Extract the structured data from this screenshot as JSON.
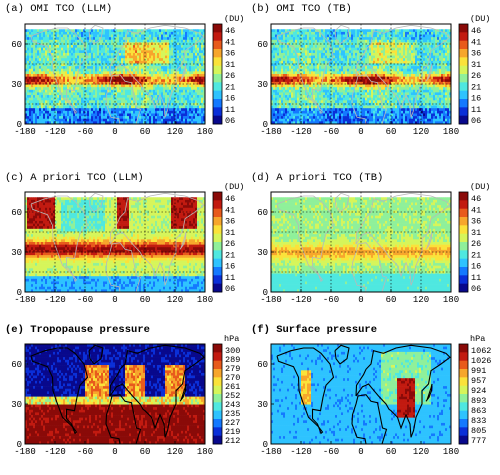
{
  "chart_data": [
    {
      "type": "heatmap",
      "title": "(a) OMI TCO (LLM)",
      "unit": "(DU)",
      "x": [
        -180,
        -120,
        -60,
        0,
        60,
        120,
        180
      ],
      "y": [
        0,
        30,
        60
      ],
      "xlim": [
        -180,
        180
      ],
      "ylim": [
        0,
        75
      ],
      "colorbar_ticks": [
        "46",
        "41",
        "36",
        "31",
        "26",
        "21",
        "16",
        "11",
        "06"
      ],
      "grid": true
    },
    {
      "type": "heatmap",
      "title": "(b) OMI TCO (TB)",
      "unit": "(DU)",
      "x": [
        -180,
        -120,
        -60,
        0,
        60,
        120,
        180
      ],
      "y": [
        0,
        30,
        60
      ],
      "xlim": [
        -180,
        180
      ],
      "ylim": [
        0,
        75
      ],
      "colorbar_ticks": [
        "46",
        "41",
        "36",
        "31",
        "26",
        "21",
        "16",
        "11",
        "06"
      ],
      "grid": true
    },
    {
      "type": "heatmap",
      "title": "(c) A priori TCO (LLM)",
      "unit": "(DU)",
      "x": [
        -180,
        -120,
        -60,
        0,
        60,
        120,
        180
      ],
      "y": [
        0,
        30,
        60
      ],
      "xlim": [
        -180,
        180
      ],
      "ylim": [
        0,
        75
      ],
      "colorbar_ticks": [
        "46",
        "41",
        "36",
        "31",
        "26",
        "21",
        "16",
        "11",
        "06"
      ],
      "grid": true
    },
    {
      "type": "heatmap",
      "title": "(d) A priori TCO (TB)",
      "unit": "(DU)",
      "x": [
        -180,
        -120,
        -60,
        0,
        60,
        120,
        180
      ],
      "y": [
        0,
        30,
        60
      ],
      "xlim": [
        -180,
        180
      ],
      "ylim": [
        0,
        75
      ],
      "colorbar_ticks": [
        "46",
        "41",
        "36",
        "31",
        "26",
        "21",
        "16",
        "11",
        "06"
      ],
      "grid": true
    },
    {
      "type": "heatmap",
      "title": "(e) Tropopause pressure",
      "unit": "hPa",
      "x": [
        -180,
        -120,
        -60,
        0,
        60,
        120,
        180
      ],
      "y": [
        0,
        30,
        60
      ],
      "xlim": [
        -180,
        180
      ],
      "ylim": [
        0,
        75
      ],
      "colorbar_ticks": [
        "300",
        "289",
        "279",
        "270",
        "261",
        "252",
        "243",
        "235",
        "227",
        "219",
        "212"
      ],
      "grid": false
    },
    {
      "type": "heatmap",
      "title": "(f) Surface pressure",
      "unit": "hPa",
      "x": [
        -180,
        -120,
        -60,
        0,
        60,
        120,
        180
      ],
      "y": [
        0,
        30,
        60
      ],
      "xlim": [
        -180,
        180
      ],
      "ylim": [
        0,
        75
      ],
      "colorbar_ticks": [
        "1062",
        "1026",
        "991",
        "957",
        "924",
        "893",
        "863",
        "833",
        "805",
        "777"
      ],
      "grid": false
    }
  ],
  "colors": {
    "scale": [
      "#08088c",
      "#0a2fd8",
      "#1479ff",
      "#2ec3ff",
      "#4fe8e0",
      "#8ff09a",
      "#d6f55a",
      "#fbe23a",
      "#f7a62c",
      "#e85a1c",
      "#c21a10",
      "#8a0a08"
    ],
    "land_outline_light": "#b8b8b8",
    "land_outline_dark": "#000000",
    "gridline": "#000000"
  }
}
